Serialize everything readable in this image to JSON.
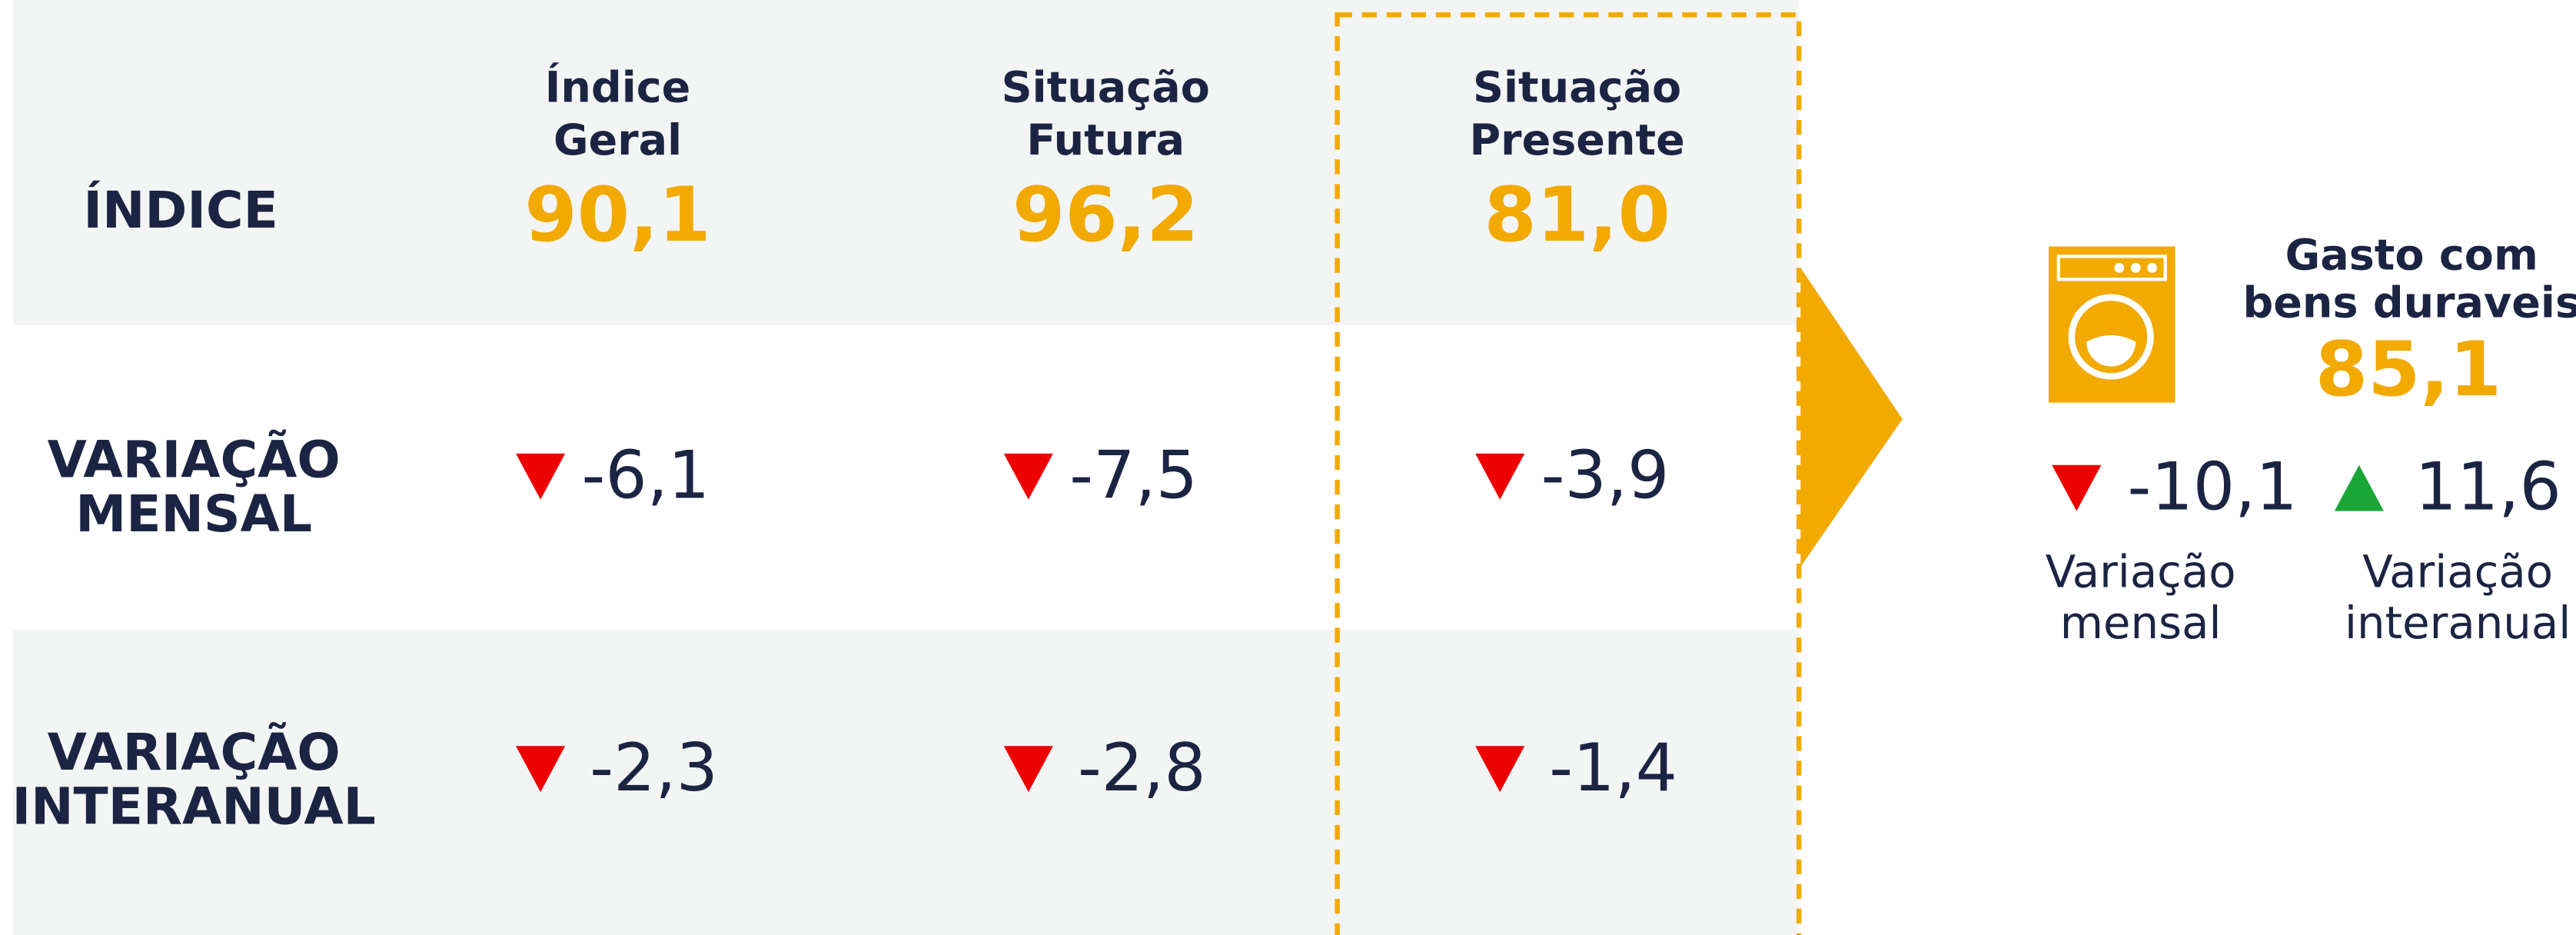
{
  "table": {
    "header_label": "ÍNDICE",
    "columns": [
      {
        "name": [
          "Índice",
          "Geral"
        ],
        "value": "90,1"
      },
      {
        "name": [
          "Situação",
          "Futura"
        ],
        "value": "96,2"
      },
      {
        "name": [
          "Situação",
          "Presente"
        ],
        "value": "81,0"
      }
    ],
    "rows": [
      {
        "label": [
          "VARIAÇÃO",
          "MENSAL"
        ],
        "values": [
          {
            "text": "-6,1",
            "direction": "down"
          },
          {
            "text": "-7,5",
            "direction": "down"
          },
          {
            "text": "-3,9",
            "direction": "down"
          }
        ]
      },
      {
        "label": [
          "VARIAÇÃO",
          "INTERANUAL"
        ],
        "values": [
          {
            "text": "-2,3",
            "direction": "down"
          },
          {
            "text": "-2,8",
            "direction": "down"
          },
          {
            "text": "-1,4",
            "direction": "down"
          }
        ]
      }
    ]
  },
  "durable_goods": {
    "title": [
      "Gasto com",
      "bens duraveis"
    ],
    "value": "85,1",
    "changes": [
      {
        "text": "-10,1",
        "direction": "down",
        "label": [
          "Variação",
          "mensal"
        ]
      },
      {
        "text": "11,6",
        "direction": "up",
        "label": [
          "Variação",
          "interanual"
        ]
      }
    ]
  }
}
